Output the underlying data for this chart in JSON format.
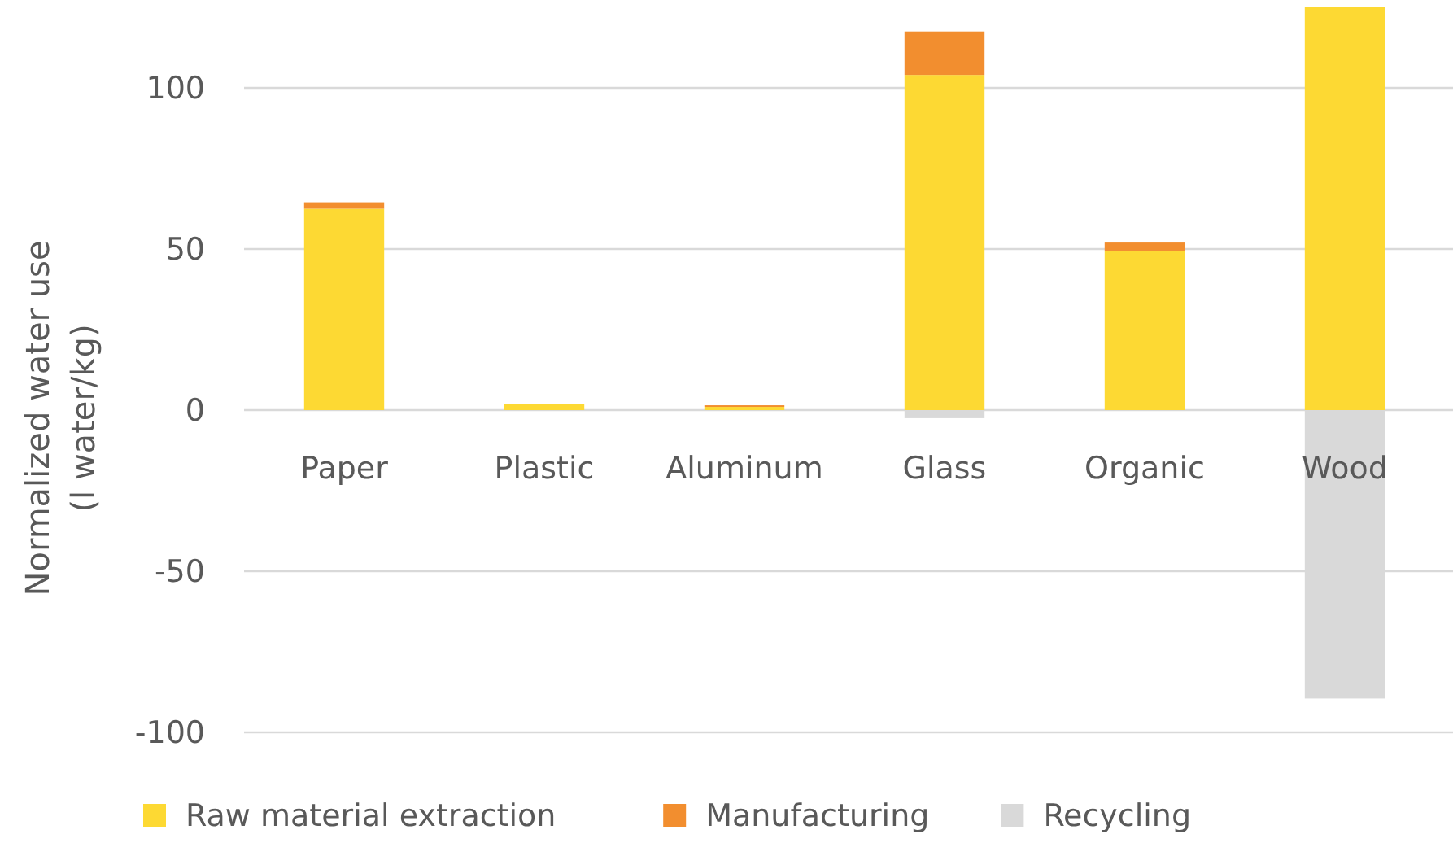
{
  "chart_data": {
    "type": "bar",
    "stacked": true,
    "ylabel": "Normalized water use\n(l water/kg)",
    "categories": [
      "Paper",
      "Plastic",
      "Aluminum",
      "Glass",
      "Organic",
      "Wood"
    ],
    "series": [
      {
        "name": "Raw material extraction",
        "color": "#fdd933",
        "values": [
          62.5,
          2,
          1,
          104,
          49.5,
          125
        ]
      },
      {
        "name": "Manufacturing",
        "color": "#f28e2f",
        "values": [
          2,
          0,
          0.5,
          13.5,
          2.5,
          0
        ]
      },
      {
        "name": "Recycling",
        "color": "#d9d9d9",
        "values": [
          0,
          0,
          0,
          -2.5,
          0,
          -89.5
        ]
      }
    ],
    "ylim": [
      -100,
      125
    ],
    "yticks": [
      -100,
      -50,
      0,
      50,
      100
    ],
    "grid": "y",
    "legend": "bottom"
  }
}
